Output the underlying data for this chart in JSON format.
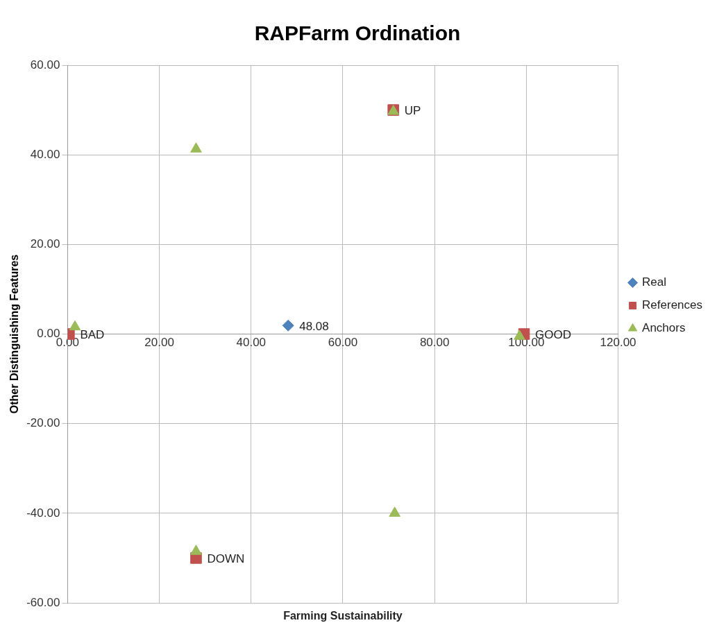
{
  "chart_data": {
    "type": "scatter",
    "title": "RAPFarm Ordination",
    "xlabel": "Farming Sustainability",
    "ylabel": "Other Distinguishing Features",
    "xlim": [
      0,
      120
    ],
    "xticks": [
      {
        "value": 0,
        "label": "0.00"
      },
      {
        "value": 20,
        "label": "20.00"
      },
      {
        "value": 40,
        "label": "40.00"
      },
      {
        "value": 60,
        "label": "60.00"
      },
      {
        "value": 80,
        "label": "80.00"
      },
      {
        "value": 100,
        "label": "100.00"
      },
      {
        "value": 120,
        "label": "120.00"
      }
    ],
    "ylim": [
      -60,
      60
    ],
    "yticks": [
      {
        "value": -60,
        "label": "-60.00"
      },
      {
        "value": -40,
        "label": "-40.00"
      },
      {
        "value": -20,
        "label": "-20.00"
      },
      {
        "value": 0,
        "label": "0.00"
      },
      {
        "value": 20,
        "label": "20.00"
      },
      {
        "value": 40,
        "label": "40.00"
      },
      {
        "value": 60,
        "label": "60.00"
      }
    ],
    "grid": true,
    "legend": "right",
    "series": [
      {
        "name": "Real",
        "color": "#4f81bd",
        "marker": "diamond",
        "x": [
          48.08
        ],
        "values": [
          1.9
        ]
      },
      {
        "name": "References",
        "color": "#c0504d",
        "marker": "square",
        "x": [
          0.3,
          99.5,
          71,
          28
        ],
        "values": [
          0,
          0,
          50,
          -50
        ]
      },
      {
        "name": "Anchors",
        "color": "#9bbb59",
        "marker": "triangle",
        "x": [
          1.6,
          98.5,
          71,
          28,
          28,
          71.3
        ],
        "values": [
          1.6,
          -0.5,
          49.7,
          41.3,
          -48.5,
          -40
        ]
      }
    ],
    "annotations": [
      {
        "text": "48.08",
        "x": 48.08,
        "y": 1.9
      },
      {
        "text": "BAD",
        "x": 0.3,
        "y": 0
      },
      {
        "text": "GOOD",
        "x": 99.5,
        "y": 0
      },
      {
        "text": "UP",
        "x": 71,
        "y": 50
      },
      {
        "text": "DOWN",
        "x": 28,
        "y": -50
      }
    ]
  }
}
